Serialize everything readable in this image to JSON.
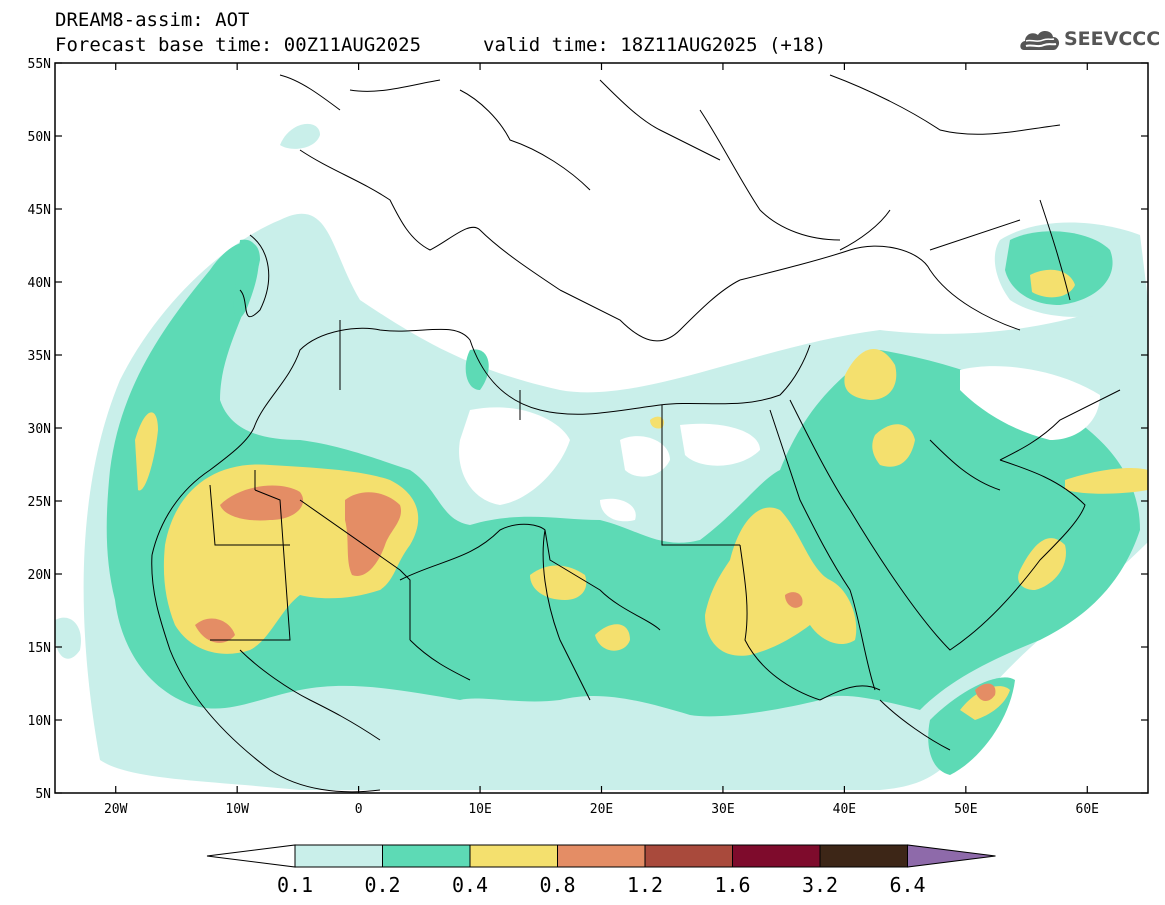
{
  "header": {
    "title_line1": "DREAM8-assim: AOT",
    "title_line2": "Forecast base time: 00Z11AUG2025",
    "title_line3": "valid time: 18Z11AUG2025 (+18)"
  },
  "logo": {
    "text": "SEEVCCC",
    "icon": "cloud-icon"
  },
  "map": {
    "projection": "lat-lon",
    "lon_range": [
      -25,
      65
    ],
    "lat_range": [
      5,
      55
    ],
    "lat_ticks": [
      "55N",
      "50N",
      "45N",
      "40N",
      "35N",
      "30N",
      "25N",
      "20N",
      "15N",
      "10N",
      "5N"
    ],
    "lon_ticks": [
      "20W",
      "10W",
      "0",
      "10E",
      "20E",
      "30E",
      "40E",
      "50E",
      "60E"
    ]
  },
  "colorbar": {
    "labels": [
      "0.1",
      "0.2",
      "0.4",
      "0.8",
      "1.2",
      "1.6",
      "3.2",
      "6.4"
    ],
    "colors": [
      "#c9efea",
      "#5ddab5",
      "#f4e06e",
      "#e48d65",
      "#a94a3c",
      "#7e0b2c",
      "#3d2617",
      "#8e6aaa"
    ]
  }
}
